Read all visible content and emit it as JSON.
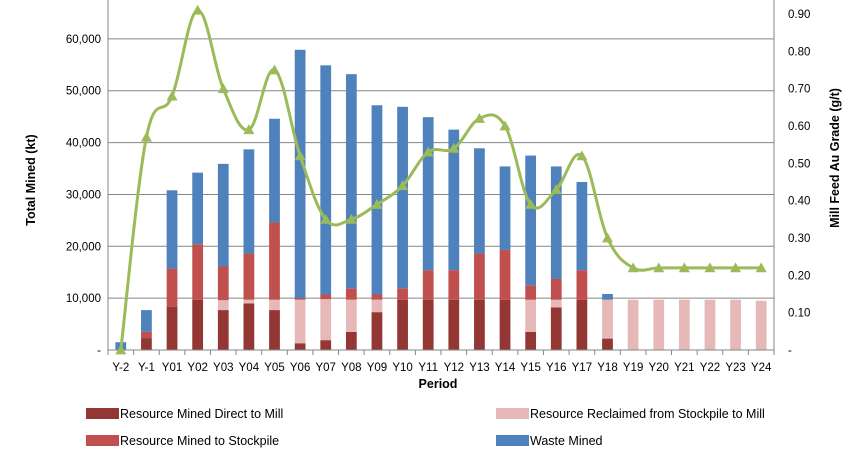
{
  "chart_data": {
    "type": "bar",
    "stacked": true,
    "xlabel": "Period",
    "ylabel": "Total Mined (kt)",
    "y2label": "Mill Feed Au Grade (g/t)",
    "ylim": [
      0,
      67500
    ],
    "y2lim": [
      0,
      0.9375
    ],
    "yticks": [
      0,
      10000,
      20000,
      30000,
      40000,
      50000,
      60000
    ],
    "ytick_labels": [
      "-",
      "10,000",
      "20,000",
      "30,000",
      "40,000",
      "50,000",
      "60,000"
    ],
    "y2ticks": [
      0,
      0.1,
      0.2,
      0.3,
      0.4,
      0.5,
      0.6,
      0.7,
      0.8,
      0.9
    ],
    "y2tick_labels": [
      "-",
      "0.10",
      "0.20",
      "0.30",
      "0.40",
      "0.50",
      "0.60",
      "0.70",
      "0.80",
      "0.90"
    ],
    "grid": true,
    "legend_position": "bottom",
    "categories": [
      "Y-2",
      "Y-1",
      "Y01",
      "Y02",
      "Y03",
      "Y04",
      "Y05",
      "Y06",
      "Y07",
      "Y08",
      "Y09",
      "Y10",
      "Y11",
      "Y12",
      "Y13",
      "Y14",
      "Y15",
      "Y16",
      "Y17",
      "Y18",
      "Y19",
      "Y20",
      "Y21",
      "Y22",
      "Y23",
      "Y24"
    ],
    "series": [
      {
        "name": "Resource Mined Direct to Mill",
        "kind": "bar",
        "color": "#943634",
        "values": [
          0,
          2300,
          8300,
          9700,
          7700,
          9000,
          7700,
          1300,
          1900,
          3500,
          7300,
          9700,
          9700,
          9700,
          9700,
          9700,
          3500,
          8200,
          9700,
          2200,
          0,
          0,
          0,
          0,
          0,
          0
        ]
      },
      {
        "name": "Resource Reclaimed from Stockpile to Mill",
        "kind": "bar",
        "color": "#E6B9B8",
        "values": [
          0,
          0,
          0,
          0,
          1900,
          700,
          2000,
          8400,
          7900,
          6200,
          2400,
          0,
          0,
          0,
          0,
          0,
          6200,
          1500,
          0,
          7500,
          9700,
          9700,
          9700,
          9700,
          9700,
          9500
        ]
      },
      {
        "name": "Resource Mined to Stockpile",
        "kind": "bar",
        "color": "#C0504D",
        "values": [
          0,
          1200,
          7400,
          10700,
          6500,
          8900,
          14900,
          300,
          900,
          2200,
          1000,
          2200,
          5700,
          5700,
          8900,
          9600,
          2800,
          4000,
          5700,
          0,
          0,
          0,
          0,
          0,
          0,
          0
        ]
      },
      {
        "name": "Waste Mined",
        "kind": "bar",
        "color": "#4F81BD",
        "values": [
          1500,
          4200,
          15100,
          13800,
          19800,
          20100,
          20000,
          47900,
          44200,
          41300,
          36500,
          35000,
          29500,
          27100,
          20300,
          16100,
          25000,
          21700,
          17000,
          1100,
          0,
          0,
          0,
          0,
          0,
          0
        ]
      },
      {
        "name": "Mill Feed Au Grade",
        "kind": "line",
        "color": "#9BBB59",
        "axis": "right",
        "values": [
          0,
          0.57,
          0.68,
          0.91,
          0.7,
          0.59,
          0.75,
          0.52,
          0.35,
          0.35,
          0.39,
          0.44,
          0.53,
          0.54,
          0.62,
          0.6,
          0.39,
          0.43,
          0.52,
          0.3,
          0.22,
          0.22,
          0.22,
          0.22,
          0.22,
          0.22
        ]
      }
    ]
  },
  "legend": [
    {
      "label": "Resource Mined Direct to Mill",
      "color": "#943634"
    },
    {
      "label": "Resource Reclaimed from Stockpile to Mill",
      "color": "#E6B9B8"
    },
    {
      "label": "Resource Mined to Stockpile",
      "color": "#C0504D"
    },
    {
      "label": "Waste Mined",
      "color": "#4F81BD"
    }
  ]
}
